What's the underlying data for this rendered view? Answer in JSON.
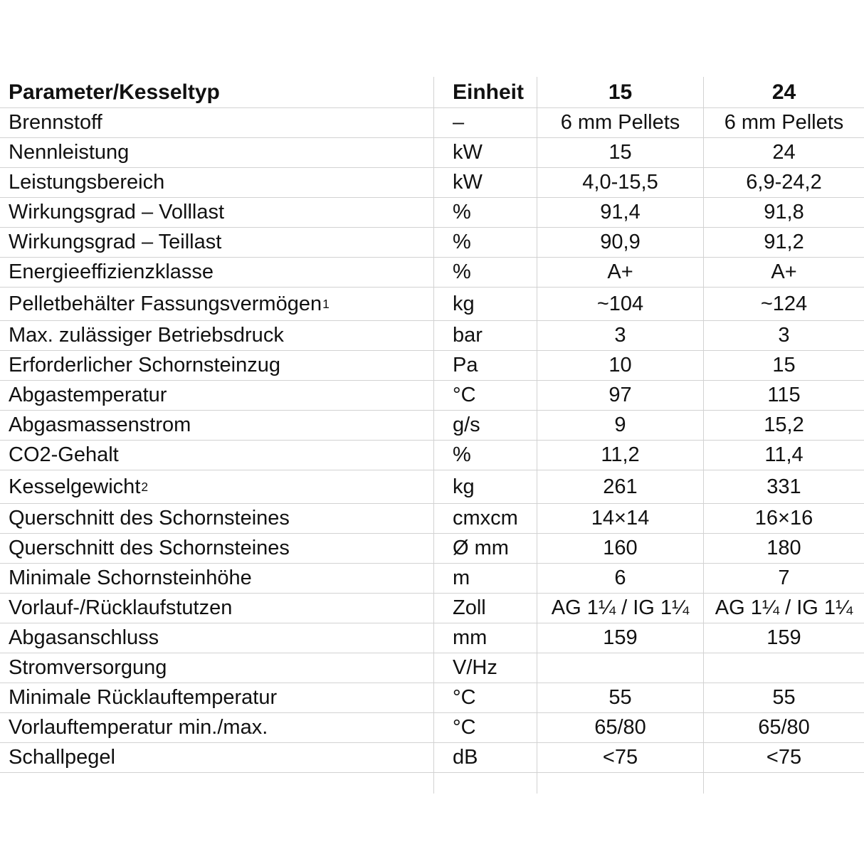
{
  "colors": {
    "background": "#ffffff",
    "text": "#111111",
    "gridline": "#d2d2d2"
  },
  "table": {
    "header": [
      "Parameter/Kesseltyp",
      "Einheit",
      "15",
      "24"
    ],
    "rows": [
      {
        "param": "Brennstoff",
        "einheit": "–",
        "v15": "6 mm Pellets",
        "v24": "6 mm Pellets"
      },
      {
        "param": "Nennleistung",
        "einheit": "kW",
        "v15": "15",
        "v24": "24"
      },
      {
        "param": "Leistungsbereich",
        "einheit": "kW",
        "v15": "4,0-15,5",
        "v24": "6,9-24,2"
      },
      {
        "param": "Wirkungsgrad – Volllast",
        "einheit": "%",
        "v15": "91,4",
        "v24": "91,8"
      },
      {
        "param": "Wirkungsgrad – Teillast",
        "einheit": "%",
        "v15": "90,9",
        "v24": "91,2"
      },
      {
        "param": "Energieeffizienzklasse",
        "einheit": "%",
        "v15": "A+",
        "v24": "A+"
      },
      {
        "param": "Pelletbehälter Fassungsvermögen",
        "sup": "1",
        "einheit": "kg",
        "v15": "~104",
        "v24": "~124"
      },
      {
        "param": "Max. zulässiger Betriebsdruck",
        "einheit": "bar",
        "v15": "3",
        "v24": "3"
      },
      {
        "param": "Erforderlicher Schornsteinzug",
        "einheit": "Pa",
        "v15": "10",
        "v24": "15"
      },
      {
        "param": "Abgastemperatur",
        "einheit": "°C",
        "v15": "97",
        "v24": "115"
      },
      {
        "param": "Abgasmassenstrom",
        "einheit": "g/s",
        "v15": "9",
        "v24": "15,2"
      },
      {
        "param": "CO2-Gehalt",
        "einheit": "%",
        "v15": "11,2",
        "v24": "11,4"
      },
      {
        "param": "Kesselgewicht",
        "sup": "2",
        "einheit": "kg",
        "v15": "261",
        "v24": "331"
      },
      {
        "param": "Querschnitt des Schornsteines",
        "einheit": "cmxcm",
        "v15": "14×14",
        "v24": "16×16"
      },
      {
        "param": "Querschnitt des Schornsteines",
        "einheit": "Ø mm",
        "v15": "160",
        "v24": "180"
      },
      {
        "param": "Minimale Schornsteinhöhe",
        "einheit": "m",
        "v15": "6",
        "v24": "7"
      },
      {
        "param": "Vorlauf-/Rücklaufstutzen",
        "einheit": "Zoll",
        "v15": "AG 1¼ / IG 1¼",
        "v24": "AG 1¼ / IG 1¼"
      },
      {
        "param": "Abgasanschluss",
        "einheit": "mm",
        "v15": "159",
        "v24": "159"
      },
      {
        "param": "Stromversorgung",
        "einheit": "V/Hz",
        "v15": "",
        "v24": ""
      },
      {
        "param": "Minimale Rücklauftemperatur",
        "einheit": "°C",
        "v15": "55",
        "v24": "55"
      },
      {
        "param": "Vorlauftemperatur min./max.",
        "einheit": "°C",
        "v15": "65/80",
        "v24": "65/80"
      },
      {
        "param": "Schallpegel",
        "einheit": "dB",
        "v15": "<75",
        "v24": "<75"
      }
    ]
  }
}
